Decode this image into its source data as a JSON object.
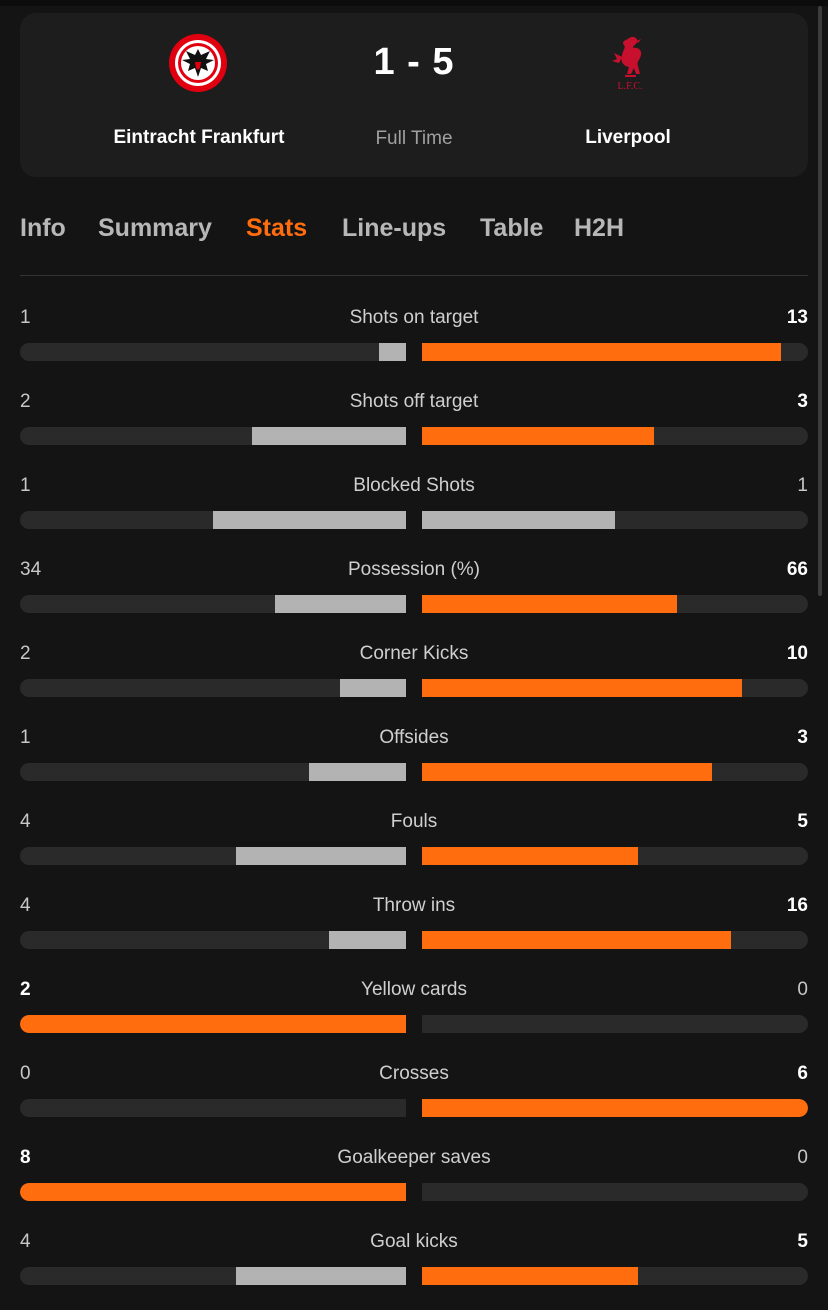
{
  "match": {
    "score": "1 - 5",
    "status": "Full Time",
    "home_team": "Eintracht Frankfurt",
    "away_team": "Liverpool",
    "away_crest_text": "L.F.C."
  },
  "tabs": [
    {
      "label": "Info",
      "active": false
    },
    {
      "label": "Summary",
      "active": false
    },
    {
      "label": "Stats",
      "active": true
    },
    {
      "label": "Line-ups",
      "active": false
    },
    {
      "label": "Table",
      "active": false
    },
    {
      "label": "H2H",
      "active": false
    }
  ],
  "stats": [
    {
      "label": "Shots on target",
      "home": "1",
      "away": "13",
      "home_share": 0.07,
      "away_share": 0.93,
      "leader": "away"
    },
    {
      "label": "Shots off target",
      "home": "2",
      "away": "3",
      "home_share": 0.4,
      "away_share": 0.6,
      "leader": "away"
    },
    {
      "label": "Blocked Shots",
      "home": "1",
      "away": "1",
      "home_share": 0.5,
      "away_share": 0.5,
      "leader": "none"
    },
    {
      "label": "Possession (%)",
      "home": "34",
      "away": "66",
      "home_share": 0.34,
      "away_share": 0.66,
      "leader": "away"
    },
    {
      "label": "Corner Kicks",
      "home": "2",
      "away": "10",
      "home_share": 0.17,
      "away_share": 0.83,
      "leader": "away"
    },
    {
      "label": "Offsides",
      "home": "1",
      "away": "3",
      "home_share": 0.25,
      "away_share": 0.75,
      "leader": "away"
    },
    {
      "label": "Fouls",
      "home": "4",
      "away": "5",
      "home_share": 0.44,
      "away_share": 0.56,
      "leader": "away"
    },
    {
      "label": "Throw ins",
      "home": "4",
      "away": "16",
      "home_share": 0.2,
      "away_share": 0.8,
      "leader": "away"
    },
    {
      "label": "Yellow cards",
      "home": "2",
      "away": "0",
      "home_share": 1.0,
      "away_share": 0.0,
      "leader": "home"
    },
    {
      "label": "Crosses",
      "home": "0",
      "away": "6",
      "home_share": 0.0,
      "away_share": 1.0,
      "leader": "away"
    },
    {
      "label": "Goalkeeper saves",
      "home": "8",
      "away": "0",
      "home_share": 1.0,
      "away_share": 0.0,
      "leader": "home"
    },
    {
      "label": "Goal kicks",
      "home": "4",
      "away": "5",
      "home_share": 0.44,
      "away_share": 0.56,
      "leader": "away"
    }
  ],
  "colors": {
    "accent": "#ff6d0e",
    "bar_trailing": "#b3b3b3",
    "bar_track": "#2a2a2a",
    "background": "#141414",
    "card": "#1d1d1d",
    "frankfurt_red": "#e1000f",
    "liverpool_red": "#c8102e"
  },
  "icons": {
    "home_crest": "eintracht-frankfurt-eagle-crest-icon",
    "away_crest": "liverpool-liverbird-crest-icon"
  }
}
